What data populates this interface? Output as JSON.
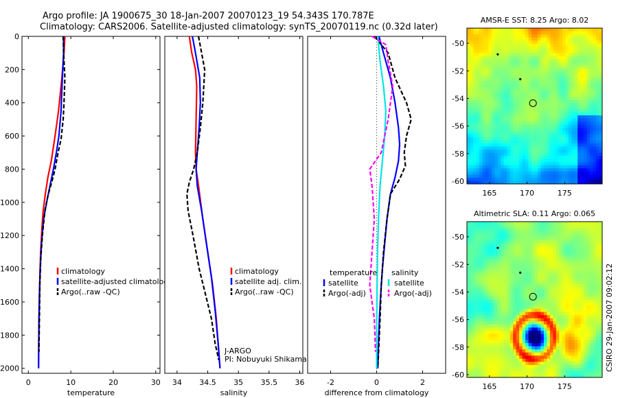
{
  "header": {
    "line1": "Argo profile: JA 1900675_30 18-Jan-2007 20070123_19 54.343S 170.787E",
    "line2": "Climatology: CARS2006. Satellite-adjusted climatology: synTS_20070119.nc (0.32d later)"
  },
  "side_label": "CSIRO 29-Jan-2007 09:02:12",
  "chart_data": [
    {
      "type": "line",
      "xlabel": "temperature",
      "xlim": [
        -1.5,
        31
      ],
      "ylim": [
        2030,
        0
      ],
      "xticks": [
        0,
        10,
        20,
        30
      ],
      "yticks": [
        0,
        200,
        400,
        600,
        800,
        1000,
        1200,
        1400,
        1600,
        1800,
        2000
      ],
      "colors": {
        "climatology": "#ff0000",
        "satellite": "#0000ff",
        "argo": "#000000"
      },
      "legend": {
        "placement": "lower-right",
        "items": [
          "climatology",
          "satellite-adjusted climatology",
          "Argo(..raw -QC)"
        ]
      },
      "series": [
        {
          "name": "climatology",
          "color": "#ff0000",
          "dash": "",
          "x": [
            8.6,
            8.4,
            7.9,
            7.1,
            6.3,
            5.4,
            4.6,
            4.0,
            3.5,
            3.2,
            2.9,
            2.7,
            2.6,
            2.5,
            2.45,
            2.4
          ],
          "y": [
            0,
            100,
            250,
            450,
            600,
            750,
            850,
            950,
            1050,
            1150,
            1300,
            1450,
            1600,
            1750,
            1900,
            2000
          ]
        },
        {
          "name": "satellite-adjusted climatology",
          "color": "#0000ff",
          "dash": "",
          "x": [
            8.3,
            8.3,
            8.0,
            7.7,
            7.2,
            6.6,
            5.9,
            5.1,
            4.3,
            3.6,
            3.1,
            2.8,
            2.6,
            2.5,
            2.45,
            2.4
          ],
          "y": [
            0,
            100,
            250,
            450,
            600,
            700,
            800,
            900,
            1000,
            1100,
            1250,
            1400,
            1550,
            1700,
            1850,
            2000
          ]
        },
        {
          "name": "Argo(..raw -QC)",
          "color": "#000000",
          "dash": "6,3",
          "x": [
            8.2,
            8.3,
            8.6,
            8.4,
            8.2,
            7.7,
            7.0,
            6.3,
            5.6,
            4.7,
            3.9,
            3.3,
            2.9,
            2.7,
            2.6,
            2.5
          ],
          "y": [
            0,
            100,
            250,
            400,
            500,
            620,
            700,
            800,
            870,
            950,
            1050,
            1200,
            1350,
            1500,
            1700,
            1900
          ]
        }
      ]
    },
    {
      "type": "line",
      "xlabel": "salinity",
      "xlim": [
        33.8,
        36.05
      ],
      "ylim": [
        2030,
        0
      ],
      "xticks": [
        34,
        34.5,
        35,
        35.5,
        36
      ],
      "xtick_labels": [
        "34",
        "34.5",
        "35",
        "35.5",
        "36"
      ],
      "legend": {
        "placement": "lower-right",
        "items": [
          "climatology",
          "satellite adj. clim.",
          "Argo(..raw -QC)"
        ]
      },
      "annotation": [
        "J-ARGO",
        "PI: Nobuyuki Shikama"
      ],
      "series": [
        {
          "name": "climatology",
          "color": "#ff0000",
          "dash": "",
          "x": [
            34.2,
            34.24,
            34.3,
            34.32,
            34.31,
            34.3,
            34.31,
            34.35,
            34.42,
            34.5,
            34.58,
            34.64,
            34.68,
            34.7
          ],
          "y": [
            0,
            100,
            200,
            300,
            500,
            700,
            800,
            900,
            1100,
            1300,
            1500,
            1700,
            1900,
            2000
          ]
        },
        {
          "name": "satellite adj. clim.",
          "color": "#0000ff",
          "dash": "",
          "x": [
            34.25,
            34.3,
            34.37,
            34.38,
            34.36,
            34.33,
            34.31,
            34.33,
            34.4,
            34.48,
            34.56,
            34.62,
            34.67,
            34.7
          ],
          "y": [
            0,
            100,
            250,
            400,
            550,
            700,
            800,
            900,
            1050,
            1250,
            1450,
            1650,
            1850,
            2000
          ]
        },
        {
          "name": "Argo(..raw -QC)",
          "color": "#000000",
          "dash": "6,3",
          "x": [
            34.35,
            34.4,
            34.45,
            34.42,
            34.38,
            34.33,
            34.27,
            34.2,
            34.16,
            34.18,
            34.26,
            34.36,
            34.46,
            34.56,
            34.62,
            34.68
          ],
          "y": [
            0,
            100,
            200,
            400,
            550,
            700,
            800,
            880,
            950,
            1050,
            1200,
            1400,
            1550,
            1700,
            1850,
            1950
          ]
        }
      ]
    },
    {
      "type": "line",
      "xlabel": "difference from climatology",
      "xlim": [
        -3,
        3
      ],
      "ylim": [
        2030,
        0
      ],
      "xticks": [
        -2,
        0,
        2
      ],
      "legend": {
        "placement": "lower-right",
        "temperature_header": "temperature",
        "salinity_header": "salinity",
        "temperature_items": [
          "satellite",
          "Argo(-adj)"
        ],
        "salinity_items": [
          "satellite",
          "Argo(-adj)"
        ]
      },
      "series": [
        {
          "name": "temperature satellite",
          "color": "#0000ff",
          "dash": "",
          "x": [
            0.1,
            0.3,
            0.6,
            0.8,
            0.95,
            1.0,
            0.95,
            0.8,
            0.6,
            0.45,
            0.35,
            0.25,
            0.18,
            0.12,
            0.08,
            0.05
          ],
          "y": [
            0,
            100,
            250,
            400,
            550,
            650,
            750,
            850,
            950,
            1100,
            1250,
            1400,
            1550,
            1700,
            1850,
            2000
          ]
        },
        {
          "name": "temperature Argo(-adj)",
          "color": "#000000",
          "dash": "6,3",
          "x": [
            -0.1,
            0.5,
            0.8,
            1.3,
            1.5,
            1.3,
            1.2,
            1.25,
            1.0,
            0.6,
            0.45,
            0.3,
            0.2,
            0.15,
            0.1,
            0.05
          ],
          "y": [
            0,
            100,
            250,
            400,
            500,
            600,
            700,
            780,
            860,
            950,
            1100,
            1300,
            1500,
            1700,
            1850,
            2000
          ]
        },
        {
          "name": "salinity satellite",
          "color": "#00e5e5",
          "dash": "",
          "x": [
            0.05,
            0.15,
            0.3,
            0.4,
            0.35,
            0.25,
            0.15,
            0.08,
            0.04,
            0.02,
            0.0,
            0.0
          ],
          "y": [
            0,
            150,
            300,
            450,
            600,
            750,
            900,
            1100,
            1300,
            1500,
            1750,
            2000
          ]
        },
        {
          "name": "salinity Argo(-adj)",
          "color": "#ff00ff",
          "dash": "6,3",
          "x": [
            -0.2,
            0.4,
            0.5,
            0.7,
            0.5,
            0.2,
            -0.3,
            -0.2,
            -0.1,
            -0.2,
            -0.3,
            -0.1,
            -0.05
          ],
          "y": [
            0,
            50,
            150,
            300,
            500,
            700,
            800,
            900,
            1100,
            1300,
            1500,
            1700,
            1900
          ]
        }
      ]
    },
    {
      "type": "heatmap",
      "title": "AMSR-E SST: 8.25 Argo: 8.02",
      "xlim": [
        162,
        180
      ],
      "ylim": [
        -60.2,
        -48.9
      ],
      "xticks": [
        165,
        170,
        175
      ],
      "yticks": [
        -60,
        -58,
        -56,
        -54,
        -52,
        -50
      ],
      "marker": {
        "lon": 170.787,
        "lat": -54.343
      },
      "small_marks": [
        {
          "lon": 166.1,
          "lat": -50.8
        },
        {
          "lon": 169.1,
          "lat": -52.6
        }
      ]
    },
    {
      "type": "heatmap",
      "title": "Altimetric SLA: 0.11 Argo: 0.065",
      "xlim": [
        162,
        180
      ],
      "ylim": [
        -60.2,
        -48.9
      ],
      "xticks": [
        165,
        170,
        175
      ],
      "yticks": [
        -60,
        -58,
        -56,
        -54,
        -52,
        -50
      ],
      "marker": {
        "lon": 170.787,
        "lat": -54.343
      },
      "small_marks": [
        {
          "lon": 166.1,
          "lat": -50.8
        },
        {
          "lon": 169.1,
          "lat": -52.6
        }
      ]
    }
  ]
}
